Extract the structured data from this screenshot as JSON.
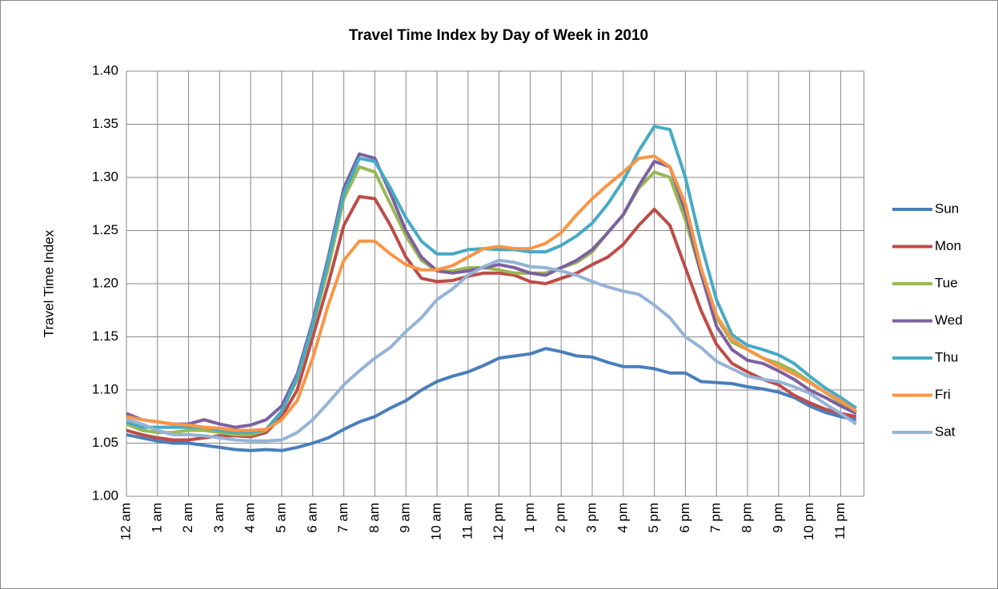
{
  "chart_data": {
    "type": "line",
    "title": "Travel Time Index by Day of Week in 2010",
    "y_label": "Travel Time Index",
    "categories": [
      "12 am",
      null,
      "1 am",
      null,
      "2 am",
      null,
      "3 am",
      null,
      "4 am",
      null,
      "5 am",
      null,
      "6 am",
      null,
      "7 am",
      null,
      "8 am",
      null,
      "9 am",
      null,
      "10 am",
      null,
      "11 am",
      null,
      "12 pm",
      null,
      "1 pm",
      null,
      "2 pm",
      null,
      "3 pm",
      null,
      "4 pm",
      null,
      "5 pm",
      null,
      "6 pm",
      null,
      "7 pm",
      null,
      "8 pm",
      null,
      "9 pm",
      null,
      "10 pm",
      null,
      "11 pm",
      null
    ],
    "ylim": [
      1.0,
      1.4
    ],
    "yticks": [
      {
        "value": 1.0,
        "label": "1.00"
      },
      1.05,
      {
        "value": 1.1,
        "label": "1.10"
      },
      1.15,
      {
        "value": 1.2,
        "label": "1.20"
      },
      1.25,
      {
        "value": 1.3,
        "label": "1.30"
      },
      1.35,
      {
        "value": 1.4,
        "label": "1.40"
      }
    ],
    "grid": true,
    "legend": "right",
    "series": [
      {
        "name": "Sun",
        "color": "#4a7ebb",
        "values": [
          1.058,
          1.055,
          1.052,
          1.05,
          1.05,
          1.048,
          1.046,
          1.044,
          1.043,
          1.044,
          1.043,
          1.046,
          1.05,
          1.055,
          1.063,
          1.07,
          1.075,
          1.083,
          1.09,
          1.1,
          1.108,
          1.113,
          1.117,
          1.123,
          1.13,
          1.132,
          1.134,
          1.139,
          1.136,
          1.132,
          1.131,
          1.126,
          1.122,
          1.122,
          1.12,
          1.116,
          1.116,
          1.108,
          1.107,
          1.106,
          1.103,
          1.101,
          1.098,
          1.093,
          1.085,
          1.079,
          1.075,
          1.072
        ]
      },
      {
        "name": "Mon",
        "color": "#be4b48",
        "values": [
          1.062,
          1.058,
          1.055,
          1.053,
          1.053,
          1.055,
          1.057,
          1.057,
          1.056,
          1.06,
          1.075,
          1.1,
          1.15,
          1.2,
          1.255,
          1.282,
          1.28,
          1.255,
          1.225,
          1.205,
          1.202,
          1.203,
          1.207,
          1.21,
          1.21,
          1.208,
          1.202,
          1.2,
          1.205,
          1.21,
          1.218,
          1.225,
          1.237,
          1.255,
          1.27,
          1.255,
          1.215,
          1.175,
          1.143,
          1.125,
          1.117,
          1.11,
          1.105,
          1.095,
          1.088,
          1.082,
          1.078,
          1.075
        ]
      },
      {
        "name": "Tue",
        "color": "#98b954",
        "values": [
          1.068,
          1.062,
          1.06,
          1.06,
          1.062,
          1.062,
          1.06,
          1.058,
          1.058,
          1.062,
          1.08,
          1.11,
          1.16,
          1.215,
          1.28,
          1.31,
          1.305,
          1.275,
          1.245,
          1.222,
          1.212,
          1.212,
          1.215,
          1.215,
          1.213,
          1.21,
          1.21,
          1.21,
          1.215,
          1.22,
          1.23,
          1.248,
          1.265,
          1.29,
          1.305,
          1.3,
          1.26,
          1.21,
          1.168,
          1.145,
          1.138,
          1.13,
          1.125,
          1.118,
          1.108,
          1.098,
          1.088,
          1.08
        ]
      },
      {
        "name": "Wed",
        "color": "#7d60a0",
        "values": [
          1.078,
          1.072,
          1.07,
          1.068,
          1.068,
          1.072,
          1.068,
          1.065,
          1.067,
          1.072,
          1.085,
          1.115,
          1.165,
          1.225,
          1.29,
          1.322,
          1.318,
          1.285,
          1.25,
          1.225,
          1.212,
          1.21,
          1.212,
          1.215,
          1.218,
          1.215,
          1.21,
          1.208,
          1.215,
          1.222,
          1.232,
          1.248,
          1.265,
          1.292,
          1.315,
          1.31,
          1.268,
          1.21,
          1.16,
          1.138,
          1.128,
          1.125,
          1.118,
          1.11,
          1.1,
          1.093,
          1.085,
          1.078
        ]
      },
      {
        "name": "Thu",
        "color": "#46aac5",
        "values": [
          1.07,
          1.065,
          1.065,
          1.065,
          1.065,
          1.065,
          1.062,
          1.06,
          1.06,
          1.063,
          1.08,
          1.112,
          1.162,
          1.222,
          1.285,
          1.318,
          1.315,
          1.29,
          1.262,
          1.24,
          1.228,
          1.228,
          1.232,
          1.233,
          1.232,
          1.232,
          1.23,
          1.23,
          1.236,
          1.245,
          1.257,
          1.275,
          1.297,
          1.325,
          1.348,
          1.345,
          1.3,
          1.238,
          1.185,
          1.152,
          1.142,
          1.138,
          1.133,
          1.125,
          1.113,
          1.102,
          1.093,
          1.083
        ]
      },
      {
        "name": "Fri",
        "color": "#f79646",
        "values": [
          1.075,
          1.072,
          1.07,
          1.068,
          1.067,
          1.065,
          1.064,
          1.062,
          1.062,
          1.063,
          1.072,
          1.09,
          1.13,
          1.18,
          1.222,
          1.24,
          1.24,
          1.228,
          1.218,
          1.213,
          1.213,
          1.217,
          1.225,
          1.233,
          1.235,
          1.233,
          1.233,
          1.238,
          1.248,
          1.265,
          1.28,
          1.293,
          1.305,
          1.318,
          1.32,
          1.31,
          1.275,
          1.215,
          1.17,
          1.148,
          1.138,
          1.13,
          1.122,
          1.115,
          1.107,
          1.098,
          1.09,
          1.08
        ]
      },
      {
        "name": "Sat",
        "color": "#95b3d7",
        "values": [
          1.072,
          1.068,
          1.062,
          1.058,
          1.058,
          1.057,
          1.055,
          1.053,
          1.052,
          1.052,
          1.053,
          1.06,
          1.072,
          1.088,
          1.105,
          1.118,
          1.13,
          1.14,
          1.155,
          1.168,
          1.185,
          1.195,
          1.208,
          1.216,
          1.222,
          1.22,
          1.216,
          1.215,
          1.212,
          1.208,
          1.202,
          1.197,
          1.193,
          1.19,
          1.18,
          1.168,
          1.15,
          1.14,
          1.127,
          1.12,
          1.113,
          1.11,
          1.108,
          1.103,
          1.097,
          1.087,
          1.078,
          1.068
        ]
      }
    ]
  }
}
